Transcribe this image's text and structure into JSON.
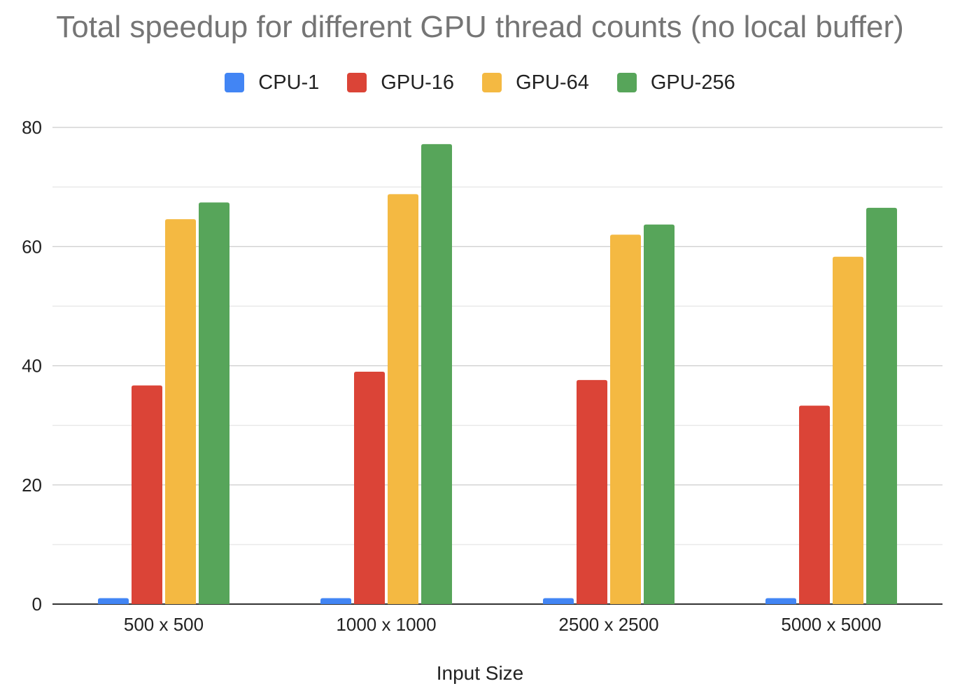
{
  "chart_data": {
    "type": "bar",
    "title": "Total speedup for different GPU thread counts (no local buffer)",
    "xlabel": "Input Size",
    "ylabel": "",
    "categories": [
      "500 x 500",
      "1000 x 1000",
      "2500 x 2500",
      "5000 x 5000"
    ],
    "series": [
      {
        "name": "CPU-1",
        "color": "#4285F4",
        "values": [
          1,
          1,
          1,
          1
        ]
      },
      {
        "name": "GPU-16",
        "color": "#DB4437",
        "values": [
          36.7,
          39.0,
          37.6,
          33.3
        ]
      },
      {
        "name": "GPU-64",
        "color": "#F4B942",
        "values": [
          64.6,
          68.8,
          62.0,
          58.3
        ]
      },
      {
        "name": "GPU-256",
        "color": "#57A55A",
        "values": [
          67.4,
          77.2,
          63.7,
          66.5
        ]
      }
    ],
    "ylim": [
      0,
      80
    ],
    "yticks": [
      0,
      20,
      40,
      60,
      80
    ],
    "grid": true,
    "legend_position": "top"
  }
}
